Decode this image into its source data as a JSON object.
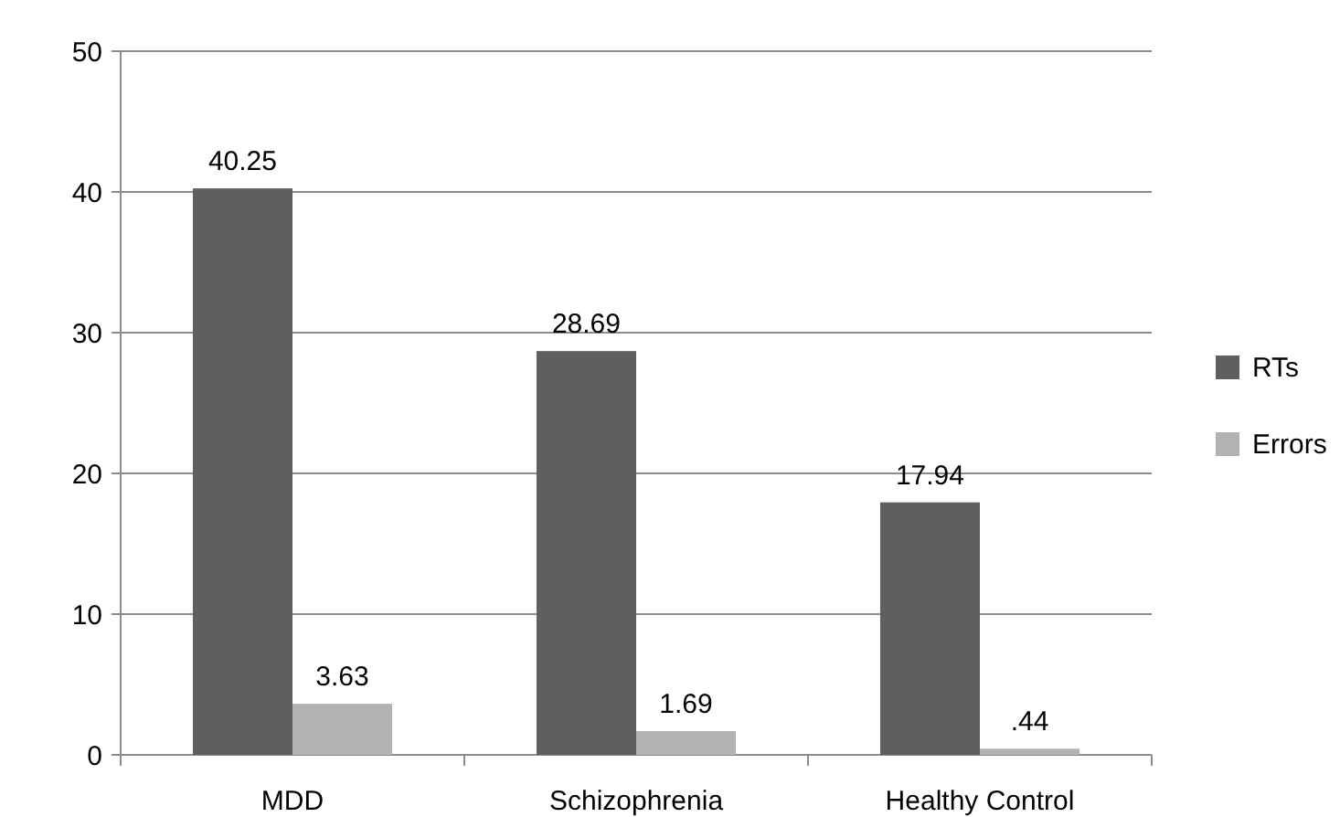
{
  "chart_data": {
    "type": "bar",
    "categories": [
      "MDD",
      "Schizophrenia",
      "Healthy Control"
    ],
    "series": [
      {
        "name": "RTs",
        "color": "#5f5f5f",
        "values": [
          40.25,
          28.69,
          17.94
        ],
        "value_labels": [
          "40.25",
          "28.69",
          "17.94"
        ]
      },
      {
        "name": "Errors",
        "color": "#b2b2b2",
        "values": [
          3.63,
          1.69,
          0.44
        ],
        "value_labels": [
          "3.63",
          "1.69",
          ".44"
        ]
      }
    ],
    "ylim": [
      0,
      50
    ],
    "yticks": [
      0,
      10,
      20,
      30,
      40,
      50
    ],
    "grid": "y",
    "legend": "right"
  }
}
